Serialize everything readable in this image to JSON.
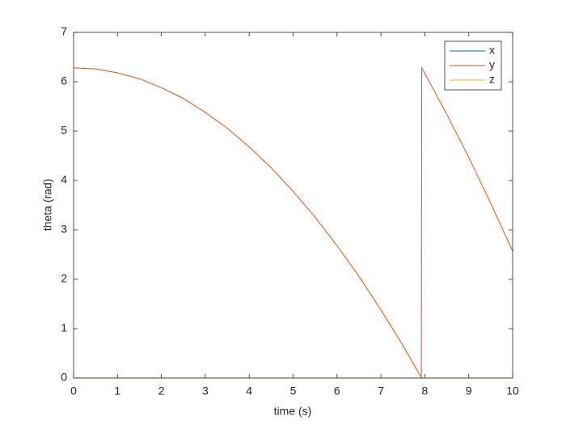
{
  "chart_data": {
    "type": "line",
    "x_label": "time (s)",
    "y_label": "theta (rad)",
    "x": [
      0,
      0.5,
      1,
      1.5,
      2,
      2.5,
      3,
      3.5,
      4,
      4.5,
      5,
      5.5,
      6,
      6.5,
      7,
      7.5,
      7.92,
      7.93,
      8,
      8.5,
      9,
      9.5,
      10
    ],
    "series": [
      {
        "name": "x",
        "color": "#0072bd",
        "values": [
          0,
          0,
          0,
          0,
          0,
          0,
          0,
          0,
          0,
          0,
          0,
          0,
          0,
          0,
          0,
          0,
          0,
          0,
          0,
          0,
          0,
          0,
          0
        ]
      },
      {
        "name": "y",
        "color": "#d95319",
        "values": [
          6.28,
          6.26,
          6.18,
          6.06,
          5.88,
          5.66,
          5.38,
          5.06,
          4.68,
          4.26,
          3.78,
          3.26,
          2.68,
          2.06,
          1.38,
          0.66,
          0.01,
          6.28,
          6.17,
          5.34,
          4.47,
          3.54,
          2.57
        ]
      },
      {
        "name": "z",
        "color": "#edb120",
        "values": [
          0,
          0,
          0,
          0,
          0,
          0,
          0,
          0,
          0,
          0,
          0,
          0,
          0,
          0,
          0,
          0,
          0,
          0,
          0,
          0,
          0,
          0,
          0
        ]
      }
    ],
    "xlim": [
      0,
      10
    ],
    "xticks": [
      0,
      1,
      2,
      3,
      4,
      5,
      6,
      7,
      8,
      9,
      10
    ],
    "ylim": [
      0,
      7
    ],
    "yticks": [
      0,
      1,
      2,
      3,
      4,
      5,
      6,
      7
    ],
    "legend": "northeast",
    "grid": false
  }
}
